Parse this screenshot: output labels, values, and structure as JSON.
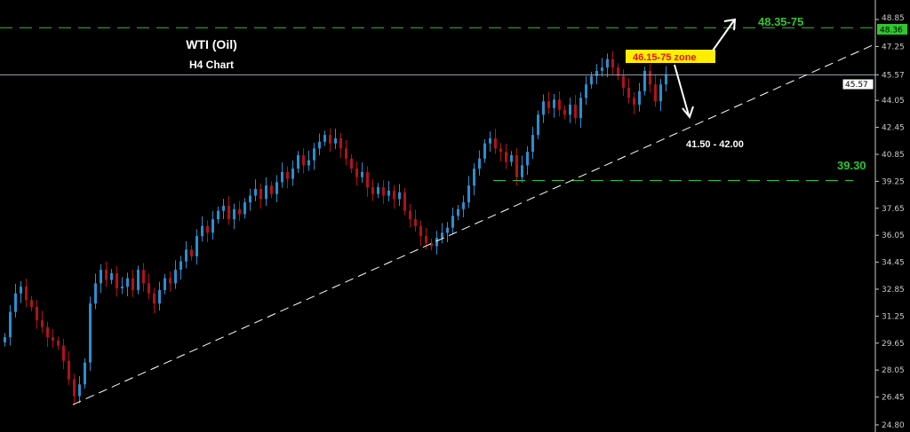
{
  "chart_data": {
    "type": "candlestick",
    "title": "WTI (Oil)",
    "subtitle": "H4 Chart",
    "ylim": [
      24.8,
      48.85
    ],
    "y_ticks": [
      "48.85",
      "47.25",
      "45.57",
      "44.05",
      "42.45",
      "40.85",
      "39.25",
      "37.65",
      "36.05",
      "34.45",
      "32.85",
      "31.25",
      "29.65",
      "28.05",
      "26.45",
      "24.80"
    ],
    "grid": false,
    "bull_color": "#2b8fcf",
    "bear_color": "#b3121a",
    "closes": [
      30,
      31.5,
      32.6,
      33,
      32.2,
      31.8,
      31,
      30.6,
      30,
      29.8,
      29.5,
      28.6,
      27.5,
      26.5,
      27.2,
      28.5,
      32,
      33.2,
      34,
      33.4,
      33.8,
      32.9,
      33,
      33.5,
      32.8,
      34,
      33.2,
      32.6,
      32,
      32.8,
      33.5,
      33.2,
      34,
      34.5,
      35.2,
      34.8,
      36,
      36.6,
      36.2,
      37,
      37.5,
      37.8,
      37,
      37.6,
      37.3,
      38,
      38.4,
      38.8,
      38.2,
      39,
      38.5,
      39.2,
      39.8,
      39.4,
      40,
      40.8,
      40.2,
      40.5,
      41.2,
      41.6,
      42,
      41.5,
      41.8,
      41.2,
      40.6,
      40,
      39.5,
      39.8,
      38.9,
      38.5,
      38.9,
      38.4,
      38.7,
      38.2,
      38.6,
      37.5,
      37,
      36.6,
      36,
      35.6,
      35.4,
      35.9,
      36.2,
      36.5,
      37.2,
      37.6,
      38,
      39,
      40,
      40.6,
      41.5,
      41.8,
      41.2,
      41,
      40.4,
      40.8,
      39.5,
      40.2,
      41,
      42,
      43.2,
      44,
      43.6,
      44.1,
      43.5,
      43.2,
      43.8,
      43,
      44.2,
      45,
      45.5,
      45.8,
      46,
      46.5,
      46,
      45.5,
      44.8,
      44.2,
      43.8,
      44.6,
      45.8,
      45,
      44,
      45,
      45.6
    ],
    "current_price": {
      "label": "45.57",
      "value": 45.57,
      "color": "#9aa6b4"
    },
    "levels": [
      {
        "value": 48.36,
        "axis_label": "48.36",
        "text": "48.35-75",
        "color": "#2fc62f"
      },
      {
        "value": 39.3,
        "text": "39.30",
        "color": "#2fc62f"
      }
    ],
    "zone_label": {
      "text": "46.15-75 zone",
      "bg": "#ffee00",
      "color": "#e8101a"
    },
    "support_label": {
      "text": "41.50 - 42.00",
      "color": "#ffffff"
    },
    "trendline": {
      "from": {
        "candle": 13,
        "price": 26.0
      },
      "to_price_at_axis": 47.4,
      "color": "#ffffff"
    }
  }
}
